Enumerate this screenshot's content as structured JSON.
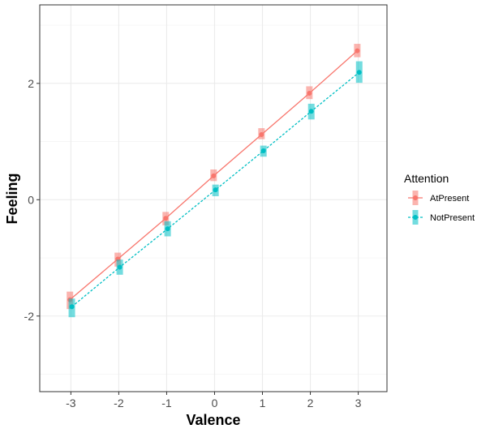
{
  "chart_data": {
    "type": "line",
    "title": "",
    "xlabel": "Valence",
    "ylabel": "Feeling",
    "x": [
      -3,
      -2,
      -1,
      0,
      1,
      2,
      3
    ],
    "xticks": [
      "-3",
      "-2",
      "-1",
      "0",
      "1",
      "2",
      "3"
    ],
    "yticks": [
      "-2",
      "0",
      "2"
    ],
    "xlim": [
      -3.65,
      3.6
    ],
    "ylim": [
      -3.3,
      3.35
    ],
    "grid": true,
    "legend": {
      "title": "Attention",
      "placement": "right"
    },
    "series": [
      {
        "name": "AtPresent",
        "color": "#F8766D",
        "line": "solid",
        "values": [
          -1.72,
          -1.02,
          -0.32,
          0.41,
          1.12,
          1.83,
          2.56
        ],
        "interval_low": [
          -1.88,
          -1.15,
          -0.44,
          0.32,
          1.04,
          1.73,
          2.45
        ],
        "interval_high": [
          -1.58,
          -0.91,
          -0.21,
          0.52,
          1.23,
          1.95,
          2.68
        ]
      },
      {
        "name": "NotPresent",
        "color": "#00BFC4",
        "line": "dotted",
        "values": [
          -1.84,
          -1.16,
          -0.5,
          0.17,
          0.84,
          1.52,
          2.19
        ],
        "interval_low": [
          -2.02,
          -1.29,
          -0.63,
          0.06,
          0.74,
          1.38,
          2.01
        ],
        "interval_high": [
          -1.7,
          -1.03,
          -0.37,
          0.26,
          0.93,
          1.65,
          2.38
        ]
      }
    ]
  }
}
